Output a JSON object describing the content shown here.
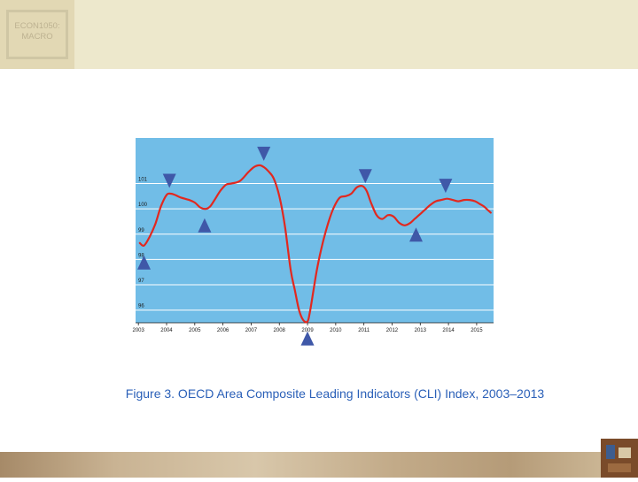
{
  "header": {
    "badge_lines": [
      "ECON1050:",
      "MACRO"
    ]
  },
  "caption": "Figure 3. OECD Area Composite Leading Indicators (CLI) Index, 2003–2013",
  "colors": {
    "plot_background": "#71bde7",
    "line": "#e2281f",
    "marker": "#3f58a8",
    "caption": "#2b60b8",
    "grid": "#ffffff"
  },
  "chart_data": {
    "type": "line",
    "title": "",
    "xlabel": "",
    "ylabel": "",
    "xlim": [
      2002.9,
      2015.6
    ],
    "ylim": [
      95.5,
      102.8
    ],
    "x_ticks": [
      2003,
      2004,
      2005,
      2006,
      2007,
      2008,
      2009,
      2010,
      2011,
      2012,
      2013,
      2014,
      2015
    ],
    "y_ticks": [
      96,
      97,
      98,
      99,
      100,
      101
    ],
    "grid": true,
    "series": [
      {
        "x": [
          2003.05,
          2003.2,
          2003.4,
          2003.6,
          2003.8,
          2004.0,
          2004.15,
          2004.3,
          2004.5,
          2004.8,
          2005.0,
          2005.2,
          2005.4,
          2005.55,
          2005.7,
          2005.9,
          2006.1,
          2006.3,
          2006.6,
          2006.9,
          2007.1,
          2007.3,
          2007.45,
          2007.6,
          2007.8,
          2008.0,
          2008.2,
          2008.4,
          2008.55,
          2008.7,
          2008.85,
          2009.0,
          2009.08,
          2009.2,
          2009.35,
          2009.55,
          2009.75,
          2009.95,
          2010.15,
          2010.35,
          2010.55,
          2010.75,
          2010.95,
          2011.1,
          2011.25,
          2011.45,
          2011.65,
          2011.85,
          2012.05,
          2012.25,
          2012.45,
          2012.65,
          2012.8,
          2012.95,
          2013.15,
          2013.35,
          2013.55,
          2013.75,
          2013.95,
          2014.15,
          2014.35,
          2014.55,
          2014.75,
          2014.95,
          2015.1,
          2015.25,
          2015.4,
          2015.5
        ],
        "y": [
          98.65,
          98.55,
          98.9,
          99.4,
          100.1,
          100.55,
          100.6,
          100.55,
          100.45,
          100.35,
          100.25,
          100.05,
          100.0,
          100.1,
          100.35,
          100.7,
          100.95,
          101.0,
          101.1,
          101.45,
          101.65,
          101.72,
          101.65,
          101.5,
          101.2,
          100.5,
          99.3,
          97.6,
          96.8,
          96.0,
          95.6,
          95.55,
          95.9,
          96.7,
          97.7,
          98.7,
          99.5,
          100.1,
          100.45,
          100.5,
          100.6,
          100.85,
          100.9,
          100.7,
          100.25,
          99.75,
          99.6,
          99.75,
          99.7,
          99.45,
          99.35,
          99.45,
          99.6,
          99.75,
          99.95,
          100.15,
          100.3,
          100.35,
          100.4,
          100.35,
          100.3,
          100.35,
          100.35,
          100.3,
          100.2,
          100.1,
          99.95,
          99.85
        ]
      }
    ],
    "markers": [
      {
        "type": "trough",
        "x": 2003.2
      },
      {
        "type": "peak",
        "x": 2004.1
      },
      {
        "type": "trough",
        "x": 2005.35
      },
      {
        "type": "peak",
        "x": 2007.45
      },
      {
        "type": "trough",
        "x": 2009.0
      },
      {
        "type": "peak",
        "x": 2011.05
      },
      {
        "type": "trough",
        "x": 2012.85
      },
      {
        "type": "peak",
        "x": 2013.9
      }
    ]
  }
}
